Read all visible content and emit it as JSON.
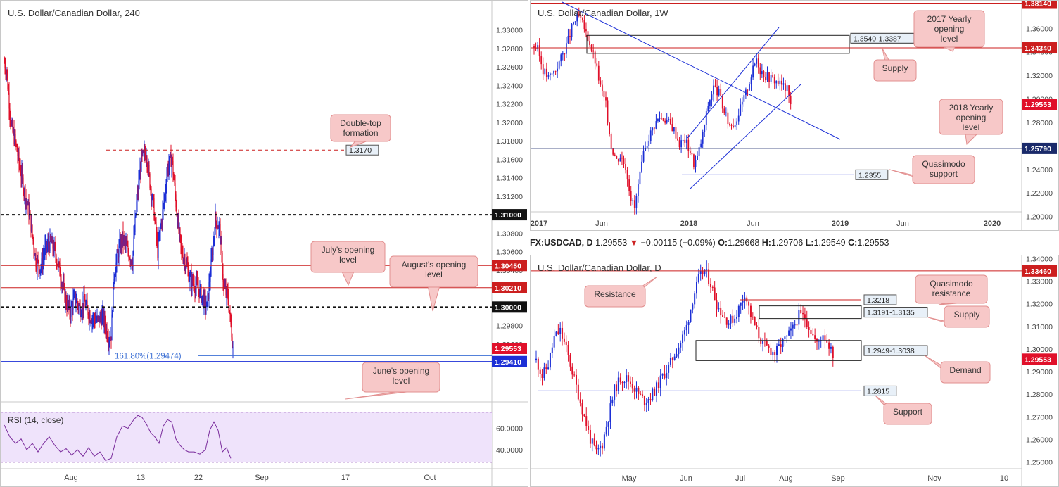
{
  "colors": {
    "bull": "#1c2fd6",
    "bear": "#e0102a",
    "level_red": "#cc1f1f",
    "level_blue": "#1c2fd6",
    "rsi": "#7a2c9c",
    "rsi_bg": "#efe3fb",
    "callout_bg": "#f7c8c8",
    "callout_border": "#e28f8f",
    "fib": "#3b6fd4"
  },
  "chart_data": [
    {
      "id": "h4",
      "type": "candlestick",
      "title": "U.S. Dollar/Canadian Dollar, 240",
      "ylim": [
        1.2905,
        1.3318
      ],
      "x_labels": [
        "Aug",
        "13",
        "22",
        "Sep",
        "17",
        "Oct"
      ],
      "y_ticks": [
        "1.33000",
        "1.32800",
        "1.32600",
        "1.32400",
        "1.32200",
        "1.32000",
        "1.31800",
        "1.31600",
        "1.31400",
        "1.31200",
        "1.31000",
        "1.30800",
        "1.30600",
        "1.30400",
        "1.30200",
        "1.30000",
        "1.29800",
        "1.29600",
        "1.29400"
      ],
      "levels": [
        {
          "label": "1.31000",
          "value": 1.31,
          "style": "dashed-black"
        },
        {
          "label": "1.30450",
          "value": 1.3045,
          "style": "red"
        },
        {
          "label": "1.30210",
          "value": 1.3021,
          "style": "red"
        },
        {
          "label": "1.30000",
          "value": 1.3,
          "style": "dashed-black"
        },
        {
          "label": "1.29553",
          "value": 1.29553,
          "style": "price"
        },
        {
          "label": "1.29410",
          "value": 1.2941,
          "style": "blue"
        }
      ],
      "fib_label": "161.80%(1.29474)",
      "fib_value": 1.29474,
      "double_top_value": 1.317,
      "double_top_label": "1.3170",
      "callouts": [
        "Double-top formation",
        "July's opening level",
        "August's opening level",
        "June's opening level"
      ],
      "anchors": [
        [
          0,
          1.3265
        ],
        [
          3,
          1.3258
        ],
        [
          10,
          1.3195
        ],
        [
          16,
          1.3178
        ],
        [
          22,
          1.3152
        ],
        [
          28,
          1.3128
        ],
        [
          36,
          1.31
        ],
        [
          45,
          1.305
        ],
        [
          52,
          1.3043
        ],
        [
          58,
          1.3062
        ],
        [
          66,
          1.307
        ],
        [
          72,
          1.306
        ],
        [
          80,
          1.3035
        ],
        [
          88,
          1.3005
        ],
        [
          94,
          1.2995
        ],
        [
          100,
          1.301
        ],
        [
          108,
          1.2998
        ],
        [
          114,
          1.3005
        ],
        [
          122,
          1.299
        ],
        [
          132,
          1.2985
        ],
        [
          140,
          1.299
        ],
        [
          148,
          1.2968
        ],
        [
          152,
          1.297
        ],
        [
          156,
          1.3035
        ],
        [
          162,
          1.306
        ],
        [
          168,
          1.3075
        ],
        [
          176,
          1.306
        ],
        [
          182,
          1.305
        ],
        [
          188,
          1.3112
        ],
        [
          195,
          1.316
        ],
        [
          202,
          1.3168
        ],
        [
          206,
          1.314
        ],
        [
          212,
          1.311
        ],
        [
          218,
          1.306
        ],
        [
          222,
          1.3085
        ],
        [
          228,
          1.312
        ],
        [
          232,
          1.315
        ],
        [
          238,
          1.3162
        ],
        [
          242,
          1.313
        ],
        [
          246,
          1.3095
        ],
        [
          252,
          1.306
        ],
        [
          258,
          1.3048
        ],
        [
          264,
          1.303
        ],
        [
          270,
          1.3025
        ],
        [
          276,
          1.302
        ],
        [
          282,
          1.301
        ],
        [
          288,
          1.3
        ],
        [
          294,
          1.3045
        ],
        [
          300,
          1.3095
        ],
        [
          306,
          1.3085
        ],
        [
          312,
          1.302
        ],
        [
          318,
          1.301
        ],
        [
          322,
          1.298
        ],
        [
          325,
          1.2957
        ]
      ],
      "rsi_label": "RSI (14, close)",
      "rsi_ticks": [
        "60.0000",
        "40.0000"
      ],
      "rsi_ylim": [
        25,
        78
      ],
      "rsi_values": [
        [
          0,
          63
        ],
        [
          8,
          52
        ],
        [
          16,
          46
        ],
        [
          24,
          50
        ],
        [
          32,
          40
        ],
        [
          40,
          46
        ],
        [
          48,
          38
        ],
        [
          56,
          46
        ],
        [
          64,
          52
        ],
        [
          72,
          44
        ],
        [
          80,
          38
        ],
        [
          88,
          41
        ],
        [
          96,
          35
        ],
        [
          104,
          40
        ],
        [
          112,
          34
        ],
        [
          120,
          42
        ],
        [
          128,
          34
        ],
        [
          136,
          38
        ],
        [
          144,
          30
        ],
        [
          152,
          32
        ],
        [
          160,
          52
        ],
        [
          168,
          62
        ],
        [
          176,
          60
        ],
        [
          184,
          68
        ],
        [
          190,
          72
        ],
        [
          196,
          70
        ],
        [
          202,
          64
        ],
        [
          208,
          56
        ],
        [
          214,
          52
        ],
        [
          220,
          46
        ],
        [
          226,
          62
        ],
        [
          232,
          68
        ],
        [
          238,
          66
        ],
        [
          244,
          50
        ],
        [
          250,
          44
        ],
        [
          256,
          40
        ],
        [
          262,
          38
        ],
        [
          270,
          38
        ],
        [
          278,
          36
        ],
        [
          286,
          40
        ],
        [
          292,
          58
        ],
        [
          298,
          66
        ],
        [
          304,
          58
        ],
        [
          310,
          38
        ],
        [
          316,
          42
        ],
        [
          322,
          32
        ]
      ]
    },
    {
      "id": "w1",
      "type": "candlestick",
      "title": "U.S. Dollar/Canadian Dollar, 1W",
      "ylim": [
        1.198,
        1.3835
      ],
      "x_labels": [
        "2017",
        "Jun",
        "2018",
        "Jun",
        "2019",
        "Jun",
        "2020"
      ],
      "y_ticks": [
        "1.36000",
        "1.34000",
        "1.32000",
        "1.30000",
        "1.28000",
        "1.26000",
        "1.24000",
        "1.22000",
        "1.20000"
      ],
      "levels": [
        {
          "label": "1.38140",
          "value": 1.3814,
          "style": "red"
        },
        {
          "label": "1.34340",
          "value": 1.3434,
          "style": "red"
        },
        {
          "label": "1.29553",
          "value": 1.29553,
          "style": "price"
        },
        {
          "label": "1.25790",
          "value": 1.2579,
          "style": "navy"
        }
      ],
      "zone": {
        "label": "1.3540-1.3387",
        "top": 1.354,
        "bottom": 1.3387
      },
      "qm_label": "1.2355",
      "qm_value": 1.2355,
      "callouts": [
        "2017 Yearly opening level",
        "Supply",
        "2018 Yearly opening level",
        "Quasimodo support"
      ],
      "anchors": [
        [
          0,
          1.345
        ],
        [
          2,
          1.342
        ],
        [
          5,
          1.325
        ],
        [
          8,
          1.318
        ],
        [
          12,
          1.325
        ],
        [
          16,
          1.338
        ],
        [
          19,
          1.35
        ],
        [
          22,
          1.365
        ],
        [
          25,
          1.37
        ],
        [
          28,
          1.36
        ],
        [
          31,
          1.348
        ],
        [
          34,
          1.332
        ],
        [
          37,
          1.31
        ],
        [
          40,
          1.295
        ],
        [
          43,
          1.26
        ],
        [
          46,
          1.248
        ],
        [
          48,
          1.252
        ],
        [
          51,
          1.243
        ],
        [
          54,
          1.216
        ],
        [
          56,
          1.207
        ],
        [
          58,
          1.226
        ],
        [
          61,
          1.252
        ],
        [
          64,
          1.268
        ],
        [
          67,
          1.278
        ],
        [
          70,
          1.285
        ],
        [
          74,
          1.282
        ],
        [
          78,
          1.274
        ],
        [
          81,
          1.262
        ],
        [
          84,
          1.265
        ],
        [
          87,
          1.256
        ],
        [
          89,
          1.245
        ],
        [
          91,
          1.25
        ],
        [
          94,
          1.27
        ],
        [
          97,
          1.295
        ],
        [
          100,
          1.31
        ],
        [
          103,
          1.305
        ],
        [
          106,
          1.288
        ],
        [
          109,
          1.278
        ],
        [
          112,
          1.28
        ],
        [
          115,
          1.292
        ],
        [
          118,
          1.305
        ],
        [
          121,
          1.32
        ],
        [
          124,
          1.335
        ],
        [
          126,
          1.325
        ],
        [
          129,
          1.32
        ],
        [
          132,
          1.318
        ],
        [
          135,
          1.315
        ],
        [
          138,
          1.312
        ],
        [
          141,
          1.308
        ],
        [
          143,
          1.2955
        ]
      ]
    },
    {
      "id": "d1",
      "type": "candlestick",
      "title": "U.S. Dollar/Canadian Dollar, D",
      "ylim": [
        1.248,
        1.3414
      ],
      "x_labels": [
        "May",
        "Jun",
        "Jul",
        "Aug",
        "Sep",
        "Nov",
        "10"
      ],
      "y_ticks": [
        "1.34000",
        "1.33000",
        "1.32000",
        "1.31000",
        "1.30000",
        "1.29000",
        "1.28000",
        "1.27000",
        "1.26000",
        "1.25000"
      ],
      "levels": [
        {
          "label": "1.33460",
          "value": 1.3346,
          "style": "red"
        },
        {
          "label": "1.29553",
          "value": 1.29553,
          "style": "price"
        }
      ],
      "zones": [
        {
          "label": "1.3191-1.3135",
          "top": 1.3191,
          "bottom": 1.3135
        },
        {
          "label": "1.2949-1.3038",
          "top": 1.3038,
          "bottom": 1.2949
        }
      ],
      "lines": [
        {
          "label": "1.3218",
          "value": 1.3218,
          "style": "red"
        },
        {
          "label": "1.2815",
          "value": 1.2815,
          "style": "blue"
        }
      ],
      "callouts": [
        "Resistance",
        "Quasimodo resistance",
        "Supply",
        "Demand",
        "Support"
      ],
      "anchors": [
        [
          0,
          1.295
        ],
        [
          3,
          1.288
        ],
        [
          6,
          1.293
        ],
        [
          9,
          1.305
        ],
        [
          12,
          1.308
        ],
        [
          15,
          1.3
        ],
        [
          18,
          1.29
        ],
        [
          21,
          1.28
        ],
        [
          24,
          1.27
        ],
        [
          27,
          1.26
        ],
        [
          30,
          1.254
        ],
        [
          33,
          1.258
        ],
        [
          36,
          1.27
        ],
        [
          39,
          1.282
        ],
        [
          42,
          1.287
        ],
        [
          45,
          1.287
        ],
        [
          48,
          1.284
        ],
        [
          51,
          1.28
        ],
        [
          54,
          1.277
        ],
        [
          57,
          1.279
        ],
        [
          60,
          1.283
        ],
        [
          63,
          1.288
        ],
        [
          66,
          1.292
        ],
        [
          69,
          1.298
        ],
        [
          72,
          1.303
        ],
        [
          75,
          1.31
        ],
        [
          78,
          1.322
        ],
        [
          81,
          1.331
        ],
        [
          84,
          1.335
        ],
        [
          87,
          1.329
        ],
        [
          90,
          1.32
        ],
        [
          93,
          1.315
        ],
        [
          96,
          1.312
        ],
        [
          99,
          1.314
        ],
        [
          102,
          1.32
        ],
        [
          104,
          1.325
        ],
        [
          107,
          1.315
        ],
        [
          110,
          1.308
        ],
        [
          113,
          1.302
        ],
        [
          116,
          1.3
        ],
        [
          119,
          1.298
        ],
        [
          122,
          1.302
        ],
        [
          125,
          1.305
        ],
        [
          128,
          1.309
        ],
        [
          131,
          1.315
        ],
        [
          134,
          1.314
        ],
        [
          137,
          1.308
        ],
        [
          140,
          1.302
        ],
        [
          143,
          1.307
        ],
        [
          146,
          1.302
        ],
        [
          148,
          1.296
        ]
      ]
    }
  ],
  "info_bar": {
    "symbol": "FX:USDCAD, D",
    "last": "1.29553",
    "arrow": "▼",
    "change": "−0.00115 (−0.09%)",
    "o_label": "O:",
    "o": "1.29668",
    "h_label": "H:",
    "h": "1.29706",
    "l_label": "L:",
    "l": "1.29549",
    "c_label": "C:",
    "c": "1.29553"
  }
}
